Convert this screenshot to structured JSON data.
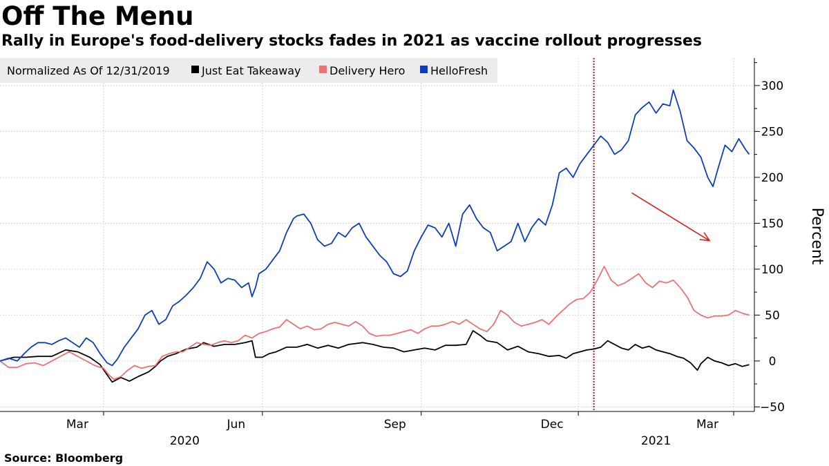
{
  "header": {
    "title": "Off The Menu",
    "subtitle": "Rally in Europe's food-delivery stocks fades in 2021 as vaccine rollout progresses"
  },
  "footer": {
    "source": "Source: Bloomberg"
  },
  "chart_data": {
    "type": "line",
    "title": "Off The Menu",
    "subtitle": "Rally in Europe's food-delivery stocks fades in 2021 as vaccine rollout progresses",
    "legend_title": "Normalized As Of 12/31/2019",
    "legend_position": "top-left",
    "ylabel": "Percent",
    "xlabel": "",
    "ylim": [
      -55,
      330
    ],
    "xlim_days": [
      0,
      437
    ],
    "yticks": [
      300,
      250,
      200,
      150,
      100,
      50,
      0,
      -50
    ],
    "x_ticks": [
      {
        "label": "Mar",
        "day": 60
      },
      {
        "label": "Jun",
        "day": 152
      },
      {
        "label": "Sep",
        "day": 244
      },
      {
        "label": "Dec",
        "day": 335
      },
      {
        "label": "Mar",
        "day": 425
      }
    ],
    "year_labels": [
      {
        "label": "2020",
        "day": 107
      },
      {
        "label": "2021",
        "day": 380
      }
    ],
    "x_units": "days since 2019-12-31",
    "grid": true,
    "annotations": [
      {
        "type": "vertical-line",
        "style": "dotted",
        "color": "#c8102e",
        "day": 344
      },
      {
        "type": "arrow",
        "color": "#e31a1c",
        "from": {
          "day": 366,
          "value": 183
        },
        "to": {
          "day": 411,
          "value": 131
        }
      }
    ],
    "series": [
      {
        "name": "Just Eat Takeaway",
        "color": "#000000",
        "points": [
          [
            0,
            0
          ],
          [
            8,
            4
          ],
          [
            15,
            4
          ],
          [
            22,
            5
          ],
          [
            30,
            5
          ],
          [
            38,
            12
          ],
          [
            45,
            10
          ],
          [
            52,
            4
          ],
          [
            58,
            -4
          ],
          [
            62,
            -15
          ],
          [
            65,
            -23
          ],
          [
            70,
            -18
          ],
          [
            75,
            -22
          ],
          [
            80,
            -17
          ],
          [
            86,
            -12
          ],
          [
            90,
            -6
          ],
          [
            93,
            0
          ],
          [
            97,
            5
          ],
          [
            102,
            8
          ],
          [
            108,
            13
          ],
          [
            114,
            15
          ],
          [
            118,
            20
          ],
          [
            124,
            16
          ],
          [
            130,
            18
          ],
          [
            136,
            18
          ],
          [
            142,
            20
          ],
          [
            146,
            22
          ],
          [
            148,
            4
          ],
          [
            152,
            4
          ],
          [
            156,
            8
          ],
          [
            160,
            10
          ],
          [
            166,
            15
          ],
          [
            172,
            15
          ],
          [
            178,
            18
          ],
          [
            184,
            14
          ],
          [
            190,
            17
          ],
          [
            196,
            14
          ],
          [
            202,
            18
          ],
          [
            210,
            20
          ],
          [
            216,
            18
          ],
          [
            222,
            15
          ],
          [
            228,
            14
          ],
          [
            234,
            10
          ],
          [
            240,
            12
          ],
          [
            246,
            14
          ],
          [
            252,
            12
          ],
          [
            258,
            17
          ],
          [
            264,
            17
          ],
          [
            270,
            18
          ],
          [
            274,
            33
          ],
          [
            278,
            28
          ],
          [
            282,
            22
          ],
          [
            288,
            20
          ],
          [
            294,
            12
          ],
          [
            300,
            16
          ],
          [
            306,
            10
          ],
          [
            312,
            8
          ],
          [
            318,
            5
          ],
          [
            324,
            6
          ],
          [
            328,
            3
          ],
          [
            332,
            8
          ],
          [
            336,
            10
          ],
          [
            340,
            12
          ],
          [
            344,
            13
          ],
          [
            348,
            15
          ],
          [
            352,
            22
          ],
          [
            356,
            18
          ],
          [
            360,
            14
          ],
          [
            364,
            12
          ],
          [
            368,
            18
          ],
          [
            372,
            14
          ],
          [
            376,
            16
          ],
          [
            380,
            12
          ],
          [
            384,
            10
          ],
          [
            388,
            8
          ],
          [
            392,
            5
          ],
          [
            396,
            3
          ],
          [
            400,
            -2
          ],
          [
            404,
            -10
          ],
          [
            406,
            -3
          ],
          [
            410,
            4
          ],
          [
            414,
            0
          ],
          [
            418,
            -2
          ],
          [
            422,
            -5
          ],
          [
            426,
            -3
          ],
          [
            430,
            -6
          ],
          [
            434,
            -4
          ]
        ]
      },
      {
        "name": "Delivery Hero",
        "color": "#f07070",
        "points": [
          [
            0,
            0
          ],
          [
            5,
            -7
          ],
          [
            10,
            -7
          ],
          [
            15,
            -3
          ],
          [
            20,
            -2
          ],
          [
            25,
            -5
          ],
          [
            30,
            0
          ],
          [
            35,
            5
          ],
          [
            40,
            10
          ],
          [
            45,
            5
          ],
          [
            50,
            0
          ],
          [
            55,
            -5
          ],
          [
            60,
            -8
          ],
          [
            63,
            -15
          ],
          [
            66,
            -20
          ],
          [
            70,
            -17
          ],
          [
            74,
            -10
          ],
          [
            78,
            -5
          ],
          [
            82,
            -8
          ],
          [
            86,
            -6
          ],
          [
            90,
            -5
          ],
          [
            94,
            5
          ],
          [
            98,
            8
          ],
          [
            102,
            10
          ],
          [
            106,
            10
          ],
          [
            110,
            15
          ],
          [
            114,
            20
          ],
          [
            118,
            18
          ],
          [
            122,
            17
          ],
          [
            126,
            20
          ],
          [
            130,
            22
          ],
          [
            134,
            20
          ],
          [
            138,
            22
          ],
          [
            142,
            28
          ],
          [
            146,
            25
          ],
          [
            150,
            30
          ],
          [
            154,
            32
          ],
          [
            158,
            35
          ],
          [
            162,
            37
          ],
          [
            166,
            45
          ],
          [
            170,
            40
          ],
          [
            174,
            35
          ],
          [
            178,
            38
          ],
          [
            182,
            34
          ],
          [
            186,
            35
          ],
          [
            190,
            40
          ],
          [
            194,
            42
          ],
          [
            198,
            40
          ],
          [
            202,
            38
          ],
          [
            206,
            43
          ],
          [
            210,
            38
          ],
          [
            214,
            30
          ],
          [
            218,
            27
          ],
          [
            222,
            28
          ],
          [
            226,
            28
          ],
          [
            230,
            30
          ],
          [
            234,
            32
          ],
          [
            238,
            34
          ],
          [
            242,
            30
          ],
          [
            246,
            35
          ],
          [
            250,
            38
          ],
          [
            254,
            38
          ],
          [
            258,
            40
          ],
          [
            262,
            43
          ],
          [
            266,
            40
          ],
          [
            270,
            45
          ],
          [
            274,
            40
          ],
          [
            278,
            35
          ],
          [
            282,
            32
          ],
          [
            286,
            40
          ],
          [
            290,
            55
          ],
          [
            294,
            50
          ],
          [
            298,
            42
          ],
          [
            302,
            38
          ],
          [
            306,
            40
          ],
          [
            310,
            42
          ],
          [
            314,
            45
          ],
          [
            318,
            40
          ],
          [
            322,
            48
          ],
          [
            326,
            55
          ],
          [
            330,
            62
          ],
          [
            334,
            67
          ],
          [
            338,
            68
          ],
          [
            342,
            75
          ],
          [
            346,
            88
          ],
          [
            350,
            103
          ],
          [
            354,
            88
          ],
          [
            358,
            82
          ],
          [
            362,
            85
          ],
          [
            366,
            90
          ],
          [
            370,
            95
          ],
          [
            374,
            85
          ],
          [
            378,
            80
          ],
          [
            382,
            87
          ],
          [
            386,
            85
          ],
          [
            390,
            88
          ],
          [
            394,
            80
          ],
          [
            398,
            70
          ],
          [
            402,
            55
          ],
          [
            406,
            50
          ],
          [
            410,
            47
          ],
          [
            414,
            49
          ],
          [
            418,
            49
          ],
          [
            422,
            50
          ],
          [
            426,
            55
          ],
          [
            430,
            52
          ],
          [
            434,
            50
          ]
        ]
      },
      {
        "name": "HelloFresh",
        "color": "#0c3dbf",
        "points": [
          [
            0,
            0
          ],
          [
            5,
            3
          ],
          [
            10,
            0
          ],
          [
            14,
            8
          ],
          [
            18,
            15
          ],
          [
            22,
            20
          ],
          [
            26,
            20
          ],
          [
            30,
            18
          ],
          [
            34,
            22
          ],
          [
            38,
            25
          ],
          [
            42,
            20
          ],
          [
            46,
            15
          ],
          [
            50,
            25
          ],
          [
            54,
            20
          ],
          [
            58,
            8
          ],
          [
            62,
            -2
          ],
          [
            65,
            -5
          ],
          [
            68,
            2
          ],
          [
            72,
            15
          ],
          [
            76,
            25
          ],
          [
            80,
            35
          ],
          [
            84,
            50
          ],
          [
            88,
            55
          ],
          [
            92,
            40
          ],
          [
            96,
            45
          ],
          [
            100,
            60
          ],
          [
            104,
            65
          ],
          [
            108,
            72
          ],
          [
            112,
            80
          ],
          [
            116,
            90
          ],
          [
            120,
            108
          ],
          [
            124,
            100
          ],
          [
            128,
            85
          ],
          [
            132,
            90
          ],
          [
            136,
            88
          ],
          [
            140,
            80
          ],
          [
            144,
            85
          ],
          [
            146,
            70
          ],
          [
            148,
            80
          ],
          [
            150,
            95
          ],
          [
            154,
            100
          ],
          [
            158,
            110
          ],
          [
            162,
            120
          ],
          [
            166,
            140
          ],
          [
            170,
            155
          ],
          [
            172,
            158
          ],
          [
            176,
            160
          ],
          [
            180,
            150
          ],
          [
            184,
            132
          ],
          [
            188,
            125
          ],
          [
            192,
            128
          ],
          [
            196,
            140
          ],
          [
            200,
            135
          ],
          [
            204,
            145
          ],
          [
            208,
            150
          ],
          [
            212,
            135
          ],
          [
            216,
            125
          ],
          [
            220,
            115
          ],
          [
            224,
            108
          ],
          [
            228,
            95
          ],
          [
            232,
            92
          ],
          [
            236,
            98
          ],
          [
            240,
            120
          ],
          [
            244,
            135
          ],
          [
            248,
            148
          ],
          [
            252,
            145
          ],
          [
            256,
            135
          ],
          [
            260,
            150
          ],
          [
            264,
            125
          ],
          [
            268,
            160
          ],
          [
            272,
            170
          ],
          [
            276,
            155
          ],
          [
            280,
            145
          ],
          [
            284,
            140
          ],
          [
            288,
            120
          ],
          [
            292,
            125
          ],
          [
            296,
            130
          ],
          [
            300,
            150
          ],
          [
            304,
            130
          ],
          [
            308,
            145
          ],
          [
            312,
            155
          ],
          [
            316,
            148
          ],
          [
            320,
            170
          ],
          [
            324,
            205
          ],
          [
            328,
            210
          ],
          [
            332,
            200
          ],
          [
            336,
            215
          ],
          [
            340,
            225
          ],
          [
            344,
            235
          ],
          [
            348,
            245
          ],
          [
            352,
            238
          ],
          [
            356,
            225
          ],
          [
            360,
            230
          ],
          [
            364,
            240
          ],
          [
            368,
            268
          ],
          [
            372,
            276
          ],
          [
            376,
            282
          ],
          [
            380,
            270
          ],
          [
            384,
            280
          ],
          [
            388,
            278
          ],
          [
            390,
            295
          ],
          [
            394,
            272
          ],
          [
            398,
            240
          ],
          [
            402,
            232
          ],
          [
            406,
            222
          ],
          [
            410,
            200
          ],
          [
            413,
            190
          ],
          [
            416,
            210
          ],
          [
            420,
            235
          ],
          [
            424,
            228
          ],
          [
            428,
            242
          ],
          [
            432,
            230
          ],
          [
            434,
            225
          ]
        ]
      }
    ]
  }
}
